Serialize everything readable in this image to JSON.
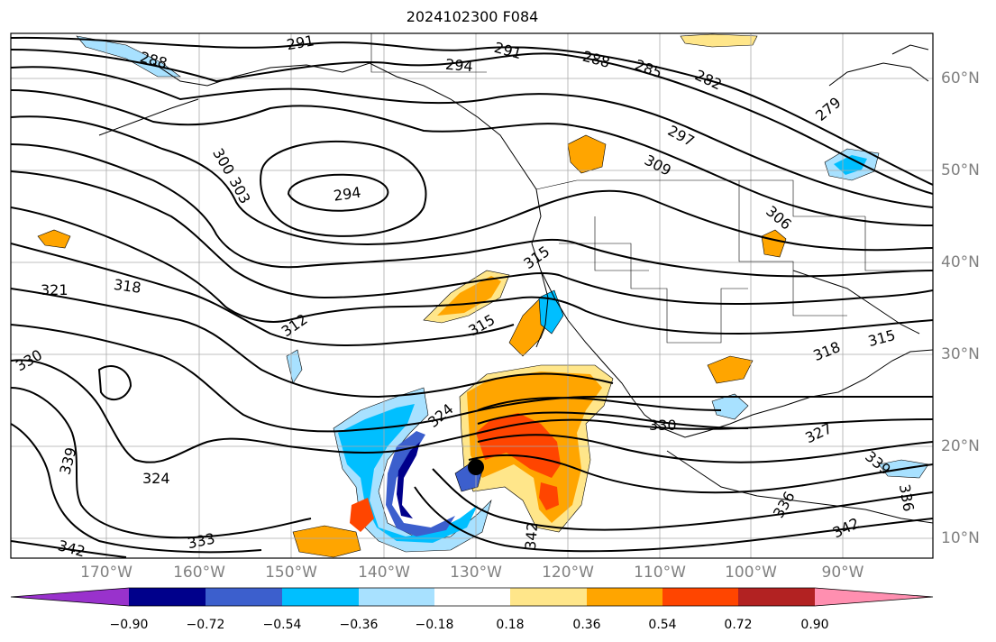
{
  "title": "2024102300 F084",
  "map": {
    "lat_labels": [
      "60°N",
      "50°N",
      "40°N",
      "30°N",
      "20°N",
      "10°N"
    ],
    "lon_labels": [
      "170°W",
      "160°W",
      "150°W",
      "140°W",
      "130°W",
      "120°W",
      "110°W",
      "100°W",
      "90°W"
    ],
    "contour_labels": [
      "291",
      "288",
      "294",
      "291",
      "288",
      "285",
      "282",
      "279",
      "297",
      "309",
      "306",
      "300",
      "303",
      "294",
      "321",
      "318",
      "312",
      "315",
      "315",
      "330",
      "318",
      "315",
      "324",
      "330",
      "327",
      "339",
      "324",
      "333",
      "342",
      "342",
      "336",
      "339",
      "342",
      "336"
    ],
    "projection_outline_color": "#000000"
  },
  "colorbar": {
    "tick_labels": [
      "−0.90",
      "−0.72",
      "−0.54",
      "−0.36",
      "−0.18",
      "0.18",
      "0.36",
      "0.54",
      "0.72",
      "0.90"
    ],
    "colors": [
      "#9932cc",
      "#00008b",
      "#3c5fcd",
      "#00bfff",
      "#a8e1ff",
      "#ffffff",
      "#ffe68a",
      "#ffa500",
      "#ff4500",
      "#b22222",
      "#ff8fb0"
    ]
  }
}
